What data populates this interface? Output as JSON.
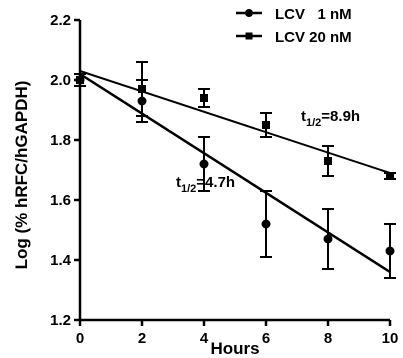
{
  "chart_data": {
    "type": "scatter",
    "xlabel": "Hours",
    "ylabel": "Log (% hRFC/hGAPDH)",
    "xlim": [
      0,
      10
    ],
    "ylim": [
      1.2,
      2.2
    ],
    "x_ticks": [
      "0",
      "2",
      "4",
      "6",
      "8",
      "10"
    ],
    "y_ticks": [
      "1.2",
      "1.4",
      "1.6",
      "1.8",
      "2.0",
      "2.2"
    ],
    "grid": false,
    "legend_position": "top-right",
    "series": [
      {
        "name": "LCV 1 nM",
        "legend_label": "LCV   1 nM",
        "marker": "circle",
        "color": "#000000",
        "x": [
          0,
          2,
          4,
          6,
          8,
          10
        ],
        "y": [
          2.0,
          1.93,
          1.72,
          1.52,
          1.47,
          1.43
        ],
        "err": [
          0.02,
          0.07,
          0.09,
          0.11,
          0.1,
          0.09
        ],
        "fit": {
          "y0": 2.02,
          "y1": 1.36
        }
      },
      {
        "name": "LCV 20 nM",
        "legend_label": "LCV 20 nM",
        "marker": "square",
        "color": "#000000",
        "x": [
          0,
          2,
          4,
          6,
          8,
          10
        ],
        "y": [
          2.0,
          1.97,
          1.94,
          1.85,
          1.73,
          1.68
        ],
        "err": [
          0.02,
          0.09,
          0.03,
          0.04,
          0.05,
          0.01
        ],
        "fit": {
          "y0": 2.03,
          "y1": 1.69
        }
      }
    ],
    "annotations": [
      {
        "prefix": "t",
        "sub": "1/2",
        "suffix": "=8.9h",
        "series": "LCV 20 nM"
      },
      {
        "prefix": "t",
        "sub": "1/2",
        "suffix": "=4.7h",
        "series": "LCV 1 nM"
      }
    ]
  }
}
